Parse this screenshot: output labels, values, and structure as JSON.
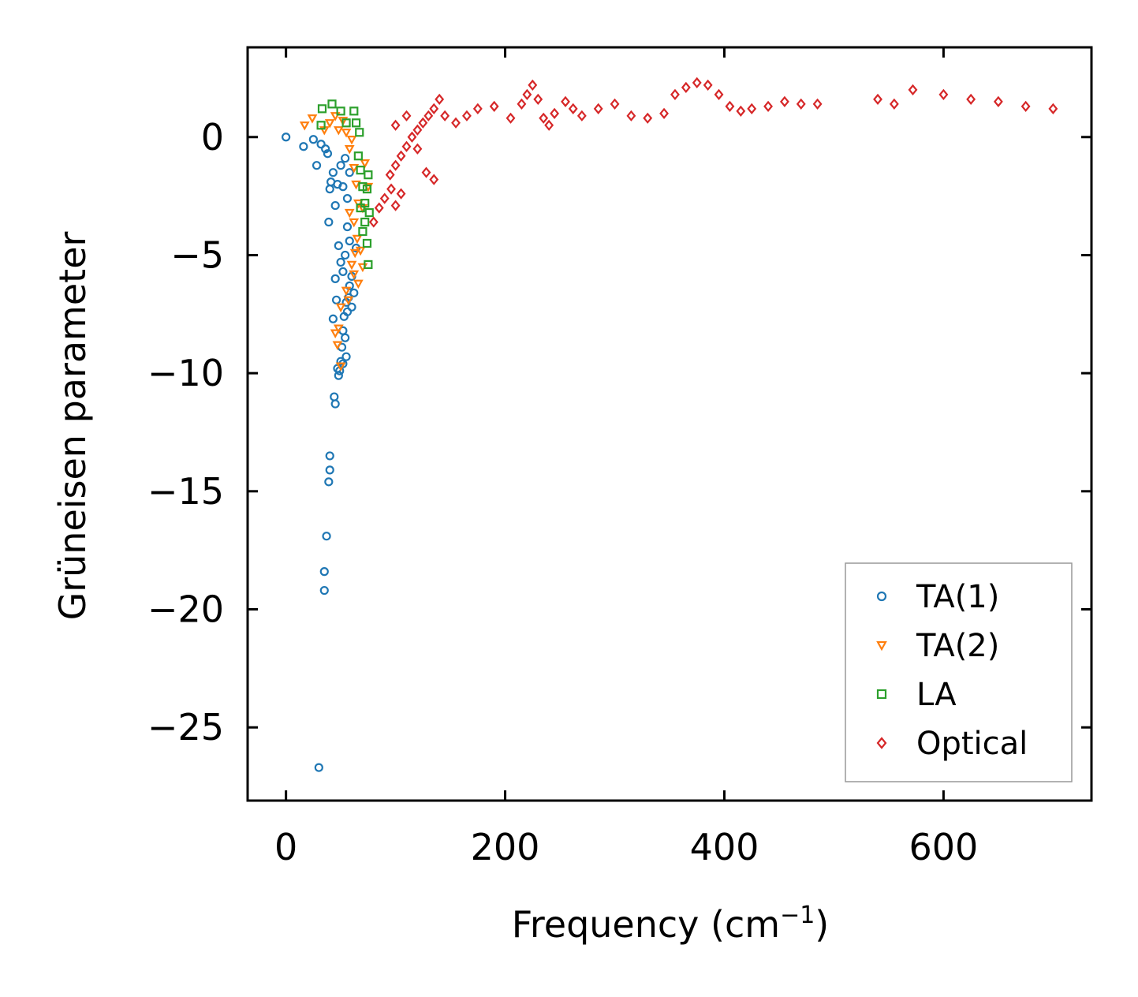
{
  "chart_data": {
    "type": "scatter",
    "title": "",
    "xlabel": "Frequency (cm",
    "xlabel_sup": "−1",
    "xlabel_close": ")",
    "ylabel": "Grüneisen parameter",
    "xlim": [
      -35,
      735
    ],
    "ylim": [
      -28.1,
      3.8
    ],
    "xticks": [
      0,
      200,
      400,
      600
    ],
    "xtick_labels": [
      "0",
      "200",
      "400",
      "600"
    ],
    "yticks": [
      0,
      -5,
      -10,
      -15,
      -20,
      -25
    ],
    "ytick_labels": [
      "0",
      "−5",
      "−10",
      "−15",
      "−20",
      "−25"
    ],
    "grid": false,
    "legend_position": "lower-right",
    "series": [
      {
        "name": "TA(1)",
        "marker": "circle",
        "color": "#1f77b4",
        "points": [
          [
            0,
            0
          ],
          [
            16,
            -0.4
          ],
          [
            25,
            -0.1
          ],
          [
            28,
            -1.2
          ],
          [
            32,
            -0.3
          ],
          [
            36,
            -0.5
          ],
          [
            38,
            -0.7
          ],
          [
            40,
            -2.2
          ],
          [
            41,
            -1.9
          ],
          [
            43,
            -1.5
          ],
          [
            45,
            -2.9
          ],
          [
            47,
            -2.0
          ],
          [
            50,
            -1.2
          ],
          [
            52,
            -2.1
          ],
          [
            54,
            -0.9
          ],
          [
            56,
            -2.6
          ],
          [
            58,
            -1.5
          ],
          [
            39,
            -3.6
          ],
          [
            45,
            -6.0
          ],
          [
            48,
            -4.6
          ],
          [
            50,
            -5.3
          ],
          [
            52,
            -5.7
          ],
          [
            54,
            -5.0
          ],
          [
            56,
            -3.8
          ],
          [
            58,
            -4.4
          ],
          [
            60,
            -5.9
          ],
          [
            62,
            -6.6
          ],
          [
            64,
            -4.7
          ],
          [
            55,
            -7.0
          ],
          [
            53,
            -7.6
          ],
          [
            52,
            -8.2
          ],
          [
            51,
            -8.9
          ],
          [
            50,
            -9.5
          ],
          [
            49,
            -9.9
          ],
          [
            48,
            -10.1
          ],
          [
            54,
            -8.5
          ],
          [
            56,
            -7.4
          ],
          [
            57,
            -6.8
          ],
          [
            46,
            -6.9
          ],
          [
            43,
            -7.7
          ],
          [
            44,
            -11.0
          ],
          [
            45,
            -11.3
          ],
          [
            40,
            -13.5
          ],
          [
            40,
            -14.1
          ],
          [
            39,
            -14.6
          ],
          [
            37,
            -16.9
          ],
          [
            35,
            -18.4
          ],
          [
            35,
            -19.2
          ],
          [
            30,
            -26.7
          ],
          [
            58,
            -6.3
          ],
          [
            60,
            -7.2
          ],
          [
            55,
            -9.3
          ],
          [
            52,
            -9.6
          ],
          [
            47,
            -9.8
          ]
        ]
      },
      {
        "name": "TA(2)",
        "marker": "triangle-down",
        "color": "#ff7f0e",
        "points": [
          [
            17,
            0.5
          ],
          [
            24,
            0.8
          ],
          [
            35,
            0.3
          ],
          [
            40,
            0.6
          ],
          [
            45,
            0.9
          ],
          [
            48,
            0.3
          ],
          [
            52,
            0.7
          ],
          [
            55,
            0.2
          ],
          [
            58,
            -0.5
          ],
          [
            60,
            -0.1
          ],
          [
            62,
            -1.3
          ],
          [
            64,
            -2.0
          ],
          [
            66,
            -2.8
          ],
          [
            58,
            -3.2
          ],
          [
            62,
            -3.6
          ],
          [
            65,
            -4.3
          ],
          [
            68,
            -4.8
          ],
          [
            70,
            -3.0
          ],
          [
            60,
            -5.4
          ],
          [
            62,
            -5.8
          ],
          [
            66,
            -6.2
          ],
          [
            55,
            -6.5
          ],
          [
            50,
            -7.2
          ],
          [
            48,
            -8.1
          ],
          [
            47,
            -8.8
          ],
          [
            50,
            -9.7
          ],
          [
            45,
            -8.3
          ],
          [
            72,
            -1.1
          ],
          [
            75,
            -2.1
          ],
          [
            70,
            -5.5
          ],
          [
            63,
            -4.9
          ],
          [
            57,
            -6.9
          ]
        ]
      },
      {
        "name": "LA",
        "marker": "square",
        "color": "#2ca02c",
        "points": [
          [
            32,
            0.5
          ],
          [
            33,
            1.2
          ],
          [
            42,
            1.4
          ],
          [
            50,
            1.1
          ],
          [
            55,
            0.6
          ],
          [
            62,
            1.1
          ],
          [
            64,
            0.6
          ],
          [
            67,
            0.2
          ],
          [
            66,
            -0.8
          ],
          [
            68,
            -1.4
          ],
          [
            70,
            -2.1
          ],
          [
            72,
            -2.8
          ],
          [
            74,
            -2.2
          ],
          [
            75,
            -1.6
          ],
          [
            72,
            -3.6
          ],
          [
            74,
            -4.5
          ],
          [
            75,
            -5.4
          ],
          [
            70,
            -4.0
          ],
          [
            68,
            -3.0
          ],
          [
            76,
            -3.2
          ]
        ]
      },
      {
        "name": "Optical",
        "marker": "diamond",
        "color": "#d62728",
        "points": [
          [
            80,
            -3.6
          ],
          [
            85,
            -3.0
          ],
          [
            90,
            -2.6
          ],
          [
            96,
            -2.2
          ],
          [
            100,
            -2.9
          ],
          [
            105,
            -2.4
          ],
          [
            95,
            -1.6
          ],
          [
            100,
            -1.2
          ],
          [
            105,
            -0.8
          ],
          [
            110,
            -0.4
          ],
          [
            115,
            0.0
          ],
          [
            120,
            0.3
          ],
          [
            125,
            0.6
          ],
          [
            130,
            0.9
          ],
          [
            135,
            1.2
          ],
          [
            140,
            1.6
          ],
          [
            100,
            0.5
          ],
          [
            110,
            0.9
          ],
          [
            120,
            -0.5
          ],
          [
            128,
            -1.5
          ],
          [
            135,
            -1.8
          ],
          [
            145,
            0.9
          ],
          [
            155,
            0.6
          ],
          [
            165,
            0.9
          ],
          [
            175,
            1.2
          ],
          [
            190,
            1.3
          ],
          [
            205,
            0.8
          ],
          [
            215,
            1.4
          ],
          [
            220,
            1.8
          ],
          [
            225,
            2.2
          ],
          [
            230,
            1.6
          ],
          [
            235,
            0.8
          ],
          [
            240,
            0.5
          ],
          [
            245,
            1.0
          ],
          [
            255,
            1.5
          ],
          [
            262,
            1.2
          ],
          [
            270,
            0.9
          ],
          [
            285,
            1.2
          ],
          [
            300,
            1.4
          ],
          [
            315,
            0.9
          ],
          [
            330,
            0.8
          ],
          [
            345,
            1.0
          ],
          [
            355,
            1.8
          ],
          [
            365,
            2.1
          ],
          [
            375,
            2.3
          ],
          [
            385,
            2.2
          ],
          [
            395,
            1.8
          ],
          [
            405,
            1.3
          ],
          [
            415,
            1.1
          ],
          [
            425,
            1.2
          ],
          [
            440,
            1.3
          ],
          [
            455,
            1.5
          ],
          [
            470,
            1.4
          ],
          [
            485,
            1.4
          ],
          [
            540,
            1.6
          ],
          [
            555,
            1.4
          ],
          [
            572,
            2.0
          ],
          [
            600,
            1.8
          ],
          [
            625,
            1.6
          ],
          [
            650,
            1.5
          ],
          [
            675,
            1.3
          ],
          [
            700,
            1.2
          ]
        ]
      }
    ]
  }
}
